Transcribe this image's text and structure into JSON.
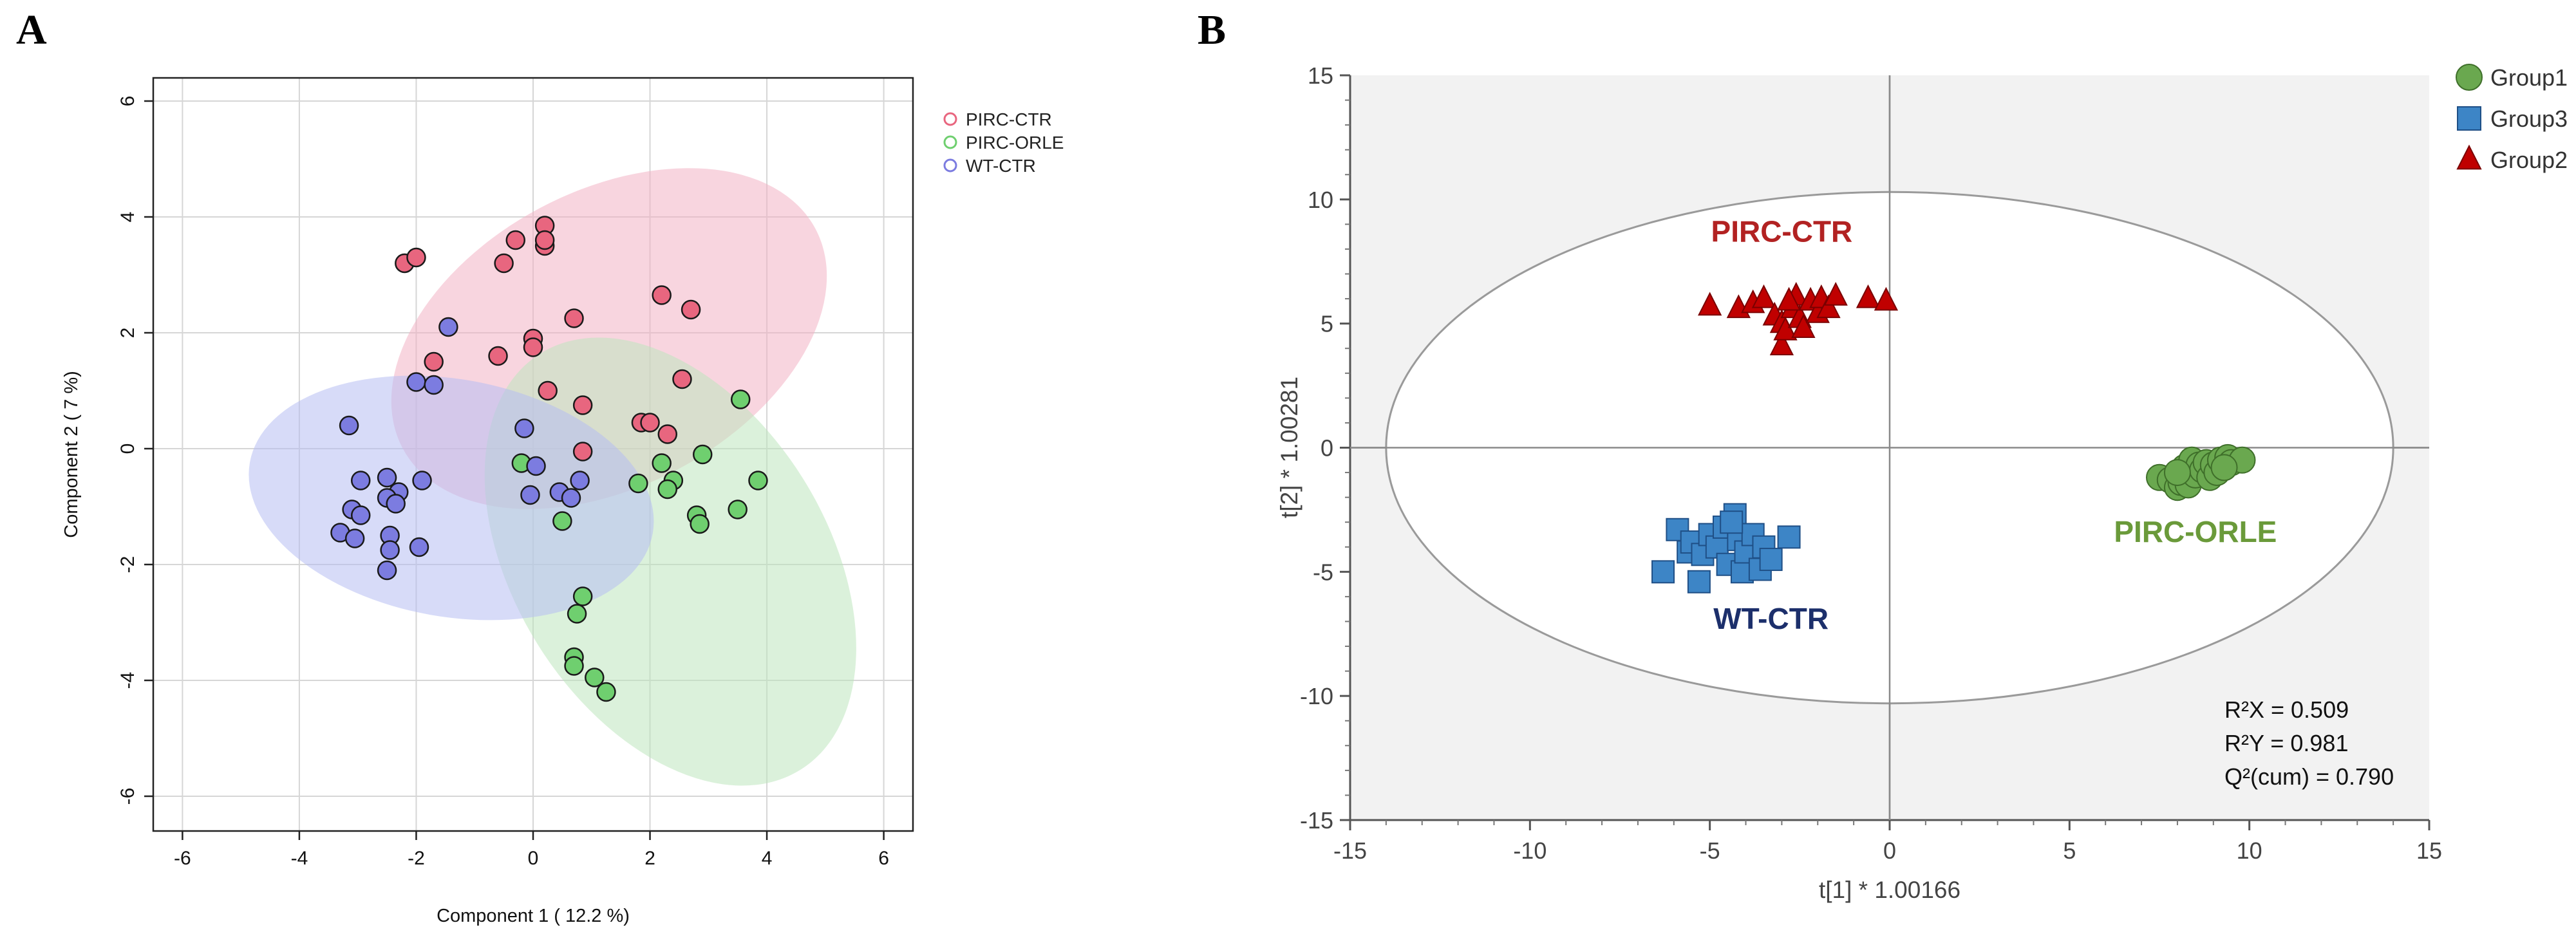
{
  "figure": {
    "panel_a_label": "A",
    "panel_b_label": "B"
  },
  "chart_data": [
    {
      "type": "scatter",
      "panel": "A",
      "title": "",
      "xlabel": "Component 1 ( 12.2 %)",
      "ylabel": "Component 2 ( 7 %)",
      "xlim": [
        -6.5,
        6.5
      ],
      "ylim": [
        -6.6,
        6.4
      ],
      "xticks": [
        -6,
        -4,
        -2,
        0,
        2,
        4,
        6
      ],
      "yticks": [
        -6,
        -4,
        -2,
        0,
        2,
        4,
        6
      ],
      "grid": true,
      "legend_position": "top-right",
      "series": [
        {
          "name": "PIRC-CTR",
          "color": "#e8667f",
          "ellipse_fill": "#f2b3c4",
          "ellipse": {
            "cx": 1.3,
            "cy": 1.9,
            "rx": 4.0,
            "ry": 2.55,
            "angle_deg": -28
          },
          "points": [
            [
              -2.2,
              3.2
            ],
            [
              -2.0,
              3.3
            ],
            [
              -0.5,
              3.2
            ],
            [
              -0.3,
              3.6
            ],
            [
              0.2,
              3.85
            ],
            [
              0.2,
              3.5
            ],
            [
              0.2,
              3.6
            ],
            [
              2.2,
              2.65
            ],
            [
              2.7,
              2.4
            ],
            [
              0.7,
              2.25
            ],
            [
              0.0,
              1.9
            ],
            [
              0.0,
              1.75
            ],
            [
              -0.6,
              1.6
            ],
            [
              -1.7,
              1.5
            ],
            [
              0.25,
              1.0
            ],
            [
              0.85,
              0.75
            ],
            [
              2.55,
              1.2
            ],
            [
              1.85,
              0.45
            ],
            [
              2.0,
              0.45
            ],
            [
              2.3,
              0.25
            ],
            [
              0.85,
              -0.05
            ]
          ]
        },
        {
          "name": "PIRC-ORLE",
          "color": "#6fcf6f",
          "ellipse_fill": "#bde6bd",
          "ellipse": {
            "cx": 2.35,
            "cy": -1.95,
            "rx": 4.2,
            "ry": 2.7,
            "angle_deg": 58
          },
          "points": [
            [
              3.55,
              0.85
            ],
            [
              2.9,
              -0.1
            ],
            [
              2.2,
              -0.25
            ],
            [
              2.4,
              -0.55
            ],
            [
              2.3,
              -0.7
            ],
            [
              1.8,
              -0.6
            ],
            [
              3.85,
              -0.55
            ],
            [
              3.5,
              -1.05
            ],
            [
              2.8,
              -1.15
            ],
            [
              2.85,
              -1.3
            ],
            [
              0.5,
              -1.25
            ],
            [
              0.85,
              -2.55
            ],
            [
              0.75,
              -2.85
            ],
            [
              0.7,
              -3.6
            ],
            [
              0.7,
              -3.75
            ],
            [
              1.05,
              -3.95
            ],
            [
              1.25,
              -4.2
            ],
            [
              -0.2,
              -0.25
            ]
          ]
        },
        {
          "name": "WT-CTR",
          "color": "#7c7ce0",
          "ellipse_fill": "#b7bdf3",
          "ellipse": {
            "cx": -1.4,
            "cy": -0.85,
            "rx": 3.5,
            "ry": 2.05,
            "angle_deg": 10
          },
          "points": [
            [
              -1.45,
              2.1
            ],
            [
              -2.0,
              1.15
            ],
            [
              -1.7,
              1.1
            ],
            [
              -3.15,
              0.4
            ],
            [
              -0.15,
              0.35
            ],
            [
              0.05,
              -0.3
            ],
            [
              -2.5,
              -0.5
            ],
            [
              -2.95,
              -0.55
            ],
            [
              -1.9,
              -0.55
            ],
            [
              -2.3,
              -0.75
            ],
            [
              -2.5,
              -0.85
            ],
            [
              -2.35,
              -0.95
            ],
            [
              -3.1,
              -1.05
            ],
            [
              -2.95,
              -1.15
            ],
            [
              -0.05,
              -0.8
            ],
            [
              0.45,
              -0.75
            ],
            [
              0.65,
              -0.85
            ],
            [
              0.8,
              -0.55
            ],
            [
              -3.3,
              -1.45
            ],
            [
              -3.05,
              -1.55
            ],
            [
              -2.45,
              -1.5
            ],
            [
              -2.45,
              -1.75
            ],
            [
              -1.95,
              -1.7
            ],
            [
              -2.5,
              -2.1
            ]
          ]
        }
      ]
    },
    {
      "type": "scatter",
      "panel": "B",
      "title": "",
      "xlabel": "t[1] * 1.00166",
      "ylabel": "t[2] * 1.00281",
      "xlim": [
        -15,
        15
      ],
      "ylim": [
        -15,
        15
      ],
      "xticks": [
        -15,
        -10,
        -5,
        0,
        5,
        10,
        15
      ],
      "yticks": [
        -15,
        -10,
        -5,
        0,
        5,
        10,
        15
      ],
      "grid": false,
      "legend_position": "outside-top-right",
      "hotelling_ellipse": {
        "cx": 0,
        "cy": 0,
        "rx": 14.0,
        "ry": 10.3
      },
      "group_labels": [
        {
          "text": "PIRC-CTR",
          "x": -3,
          "y": 8.3,
          "color": "#b22222"
        },
        {
          "text": "PIRC-ORLE",
          "x": 8.5,
          "y": -3.8,
          "color": "#6a9a3a"
        },
        {
          "text": "WT-CTR",
          "x": -3.3,
          "y": -7.3,
          "color": "#1c2f6b"
        }
      ],
      "stats": [
        "R²X = 0.509",
        "R²Y = 0.981",
        "Q²(cum) = 0.790"
      ],
      "series": [
        {
          "name": "Group1",
          "marker": "circle",
          "color": "#6aa84f",
          "points": [
            [
              7.5,
              -1.2
            ],
            [
              7.8,
              -1.3
            ],
            [
              8.0,
              -1.6
            ],
            [
              8.1,
              -1.4
            ],
            [
              8.2,
              -0.8
            ],
            [
              8.3,
              -1.5
            ],
            [
              8.4,
              -0.5
            ],
            [
              8.5,
              -1.1
            ],
            [
              8.6,
              -0.7
            ],
            [
              8.7,
              -0.9
            ],
            [
              8.8,
              -0.6
            ],
            [
              8.9,
              -1.2
            ],
            [
              9.0,
              -0.7
            ],
            [
              9.1,
              -1.0
            ],
            [
              9.2,
              -0.5
            ],
            [
              9.4,
              -0.4
            ],
            [
              9.5,
              -0.6
            ],
            [
              9.8,
              -0.5
            ],
            [
              9.3,
              -0.8
            ],
            [
              8.0,
              -1.0
            ]
          ]
        },
        {
          "name": "Group3",
          "marker": "square",
          "color": "#3d85c6",
          "points": [
            [
              -6.3,
              -5.0
            ],
            [
              -5.9,
              -3.3
            ],
            [
              -5.6,
              -4.2
            ],
            [
              -5.5,
              -3.8
            ],
            [
              -5.3,
              -5.4
            ],
            [
              -5.2,
              -4.3
            ],
            [
              -5.0,
              -3.5
            ],
            [
              -4.8,
              -4.0
            ],
            [
              -4.6,
              -3.2
            ],
            [
              -4.5,
              -4.7
            ],
            [
              -4.3,
              -2.7
            ],
            [
              -4.2,
              -3.7
            ],
            [
              -4.1,
              -5.0
            ],
            [
              -4.0,
              -4.2
            ],
            [
              -3.8,
              -3.5
            ],
            [
              -3.6,
              -4.9
            ],
            [
              -3.5,
              -4.0
            ],
            [
              -3.3,
              -4.5
            ],
            [
              -2.8,
              -3.6
            ],
            [
              -4.4,
              -3.0
            ]
          ]
        },
        {
          "name": "Group2",
          "marker": "triangle",
          "color": "#c00000",
          "points": [
            [
              -5.0,
              5.7
            ],
            [
              -4.2,
              5.6
            ],
            [
              -3.8,
              5.8
            ],
            [
              -3.5,
              6.0
            ],
            [
              -3.2,
              5.3
            ],
            [
              -3.0,
              5.0
            ],
            [
              -3.0,
              4.1
            ],
            [
              -2.9,
              4.7
            ],
            [
              -2.7,
              5.6
            ],
            [
              -2.6,
              6.1
            ],
            [
              -2.5,
              5.2
            ],
            [
              -2.4,
              4.8
            ],
            [
              -2.2,
              5.9
            ],
            [
              -2.0,
              5.4
            ],
            [
              -1.9,
              6.0
            ],
            [
              -1.7,
              5.6
            ],
            [
              -1.5,
              6.1
            ],
            [
              -0.6,
              6.0
            ],
            [
              -0.1,
              5.9
            ],
            [
              -2.8,
              5.9
            ]
          ]
        }
      ]
    }
  ]
}
